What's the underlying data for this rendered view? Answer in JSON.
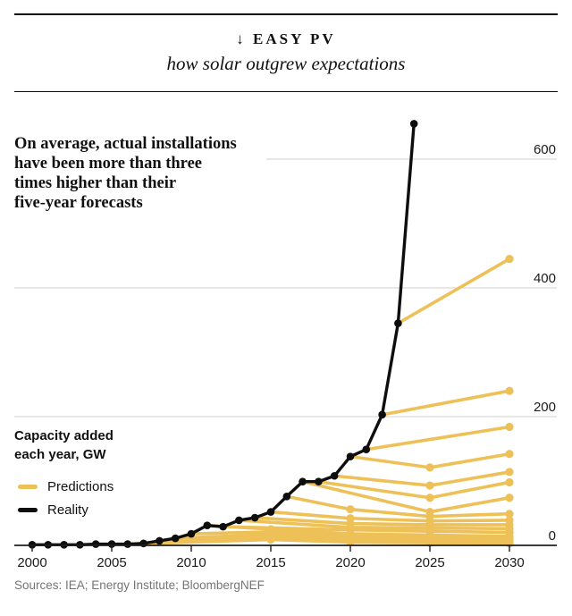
{
  "header": {
    "kicker": "↓ EASY PV",
    "subtitle": "how solar outgrew expectations"
  },
  "annotation": "On average, actual installations\nhave been more than three\ntimes higher than their\nfive-year forecasts",
  "axis_unit": "Capacity added\neach year, GW",
  "legend": {
    "predictions": {
      "label": "Predictions",
      "color": "#edc158"
    },
    "reality": {
      "label": "Reality",
      "color": "#0e0e0e"
    }
  },
  "footer": {
    "sources": "Sources: IEA; Energy Institute; BloombergNEF"
  },
  "chart_data": {
    "type": "line",
    "title": "EASY PV",
    "subtitle": "how solar outgrew expectations",
    "ylabel": "Capacity added each year, GW",
    "xlabel": "",
    "x_ticks": [
      2000,
      2005,
      2010,
      2015,
      2020,
      2025,
      2030
    ],
    "y_ticks": [
      0,
      200,
      400,
      600
    ],
    "xlim": [
      2000,
      2032
    ],
    "ylim": [
      0,
      680
    ],
    "grid": "horizontal",
    "legend_position": "left-middle",
    "colors": {
      "reality": "#0e0e0e",
      "predictions": "#edc158",
      "gridline": "#dadada",
      "axis": "#1f1f1f",
      "tick_text": "#1a1a1a"
    },
    "reality": {
      "name": "Reality",
      "points": [
        [
          2000,
          1
        ],
        [
          2001,
          1
        ],
        [
          2002,
          1
        ],
        [
          2003,
          1
        ],
        [
          2004,
          2
        ],
        [
          2005,
          2
        ],
        [
          2006,
          2
        ],
        [
          2007,
          3
        ],
        [
          2008,
          7
        ],
        [
          2009,
          11
        ],
        [
          2010,
          18
        ],
        [
          2011,
          31
        ],
        [
          2012,
          29
        ],
        [
          2013,
          39
        ],
        [
          2014,
          43
        ],
        [
          2015,
          52
        ],
        [
          2016,
          76
        ],
        [
          2017,
          99
        ],
        [
          2018,
          99
        ],
        [
          2019,
          108
        ],
        [
          2020,
          138
        ],
        [
          2021,
          149
        ],
        [
          2022,
          203
        ],
        [
          2023,
          345
        ],
        [
          2024,
          655
        ]
      ]
    },
    "predictions": {
      "name": "Predictions",
      "lines": [
        [
          [
            2023,
            345
          ],
          [
            2030,
            445
          ]
        ],
        [
          [
            2022,
            203
          ],
          [
            2030,
            240
          ]
        ],
        [
          [
            2021,
            149
          ],
          [
            2030,
            184
          ]
        ],
        [
          [
            2020,
            138
          ],
          [
            2025,
            121
          ],
          [
            2030,
            142
          ]
        ],
        [
          [
            2019,
            108
          ],
          [
            2025,
            93
          ],
          [
            2030,
            114
          ]
        ],
        [
          [
            2018,
            99
          ],
          [
            2025,
            74
          ],
          [
            2030,
            98
          ]
        ],
        [
          [
            2017,
            99
          ],
          [
            2025,
            52
          ],
          [
            2030,
            74
          ]
        ],
        [
          [
            2016,
            76
          ],
          [
            2020,
            56
          ],
          [
            2025,
            45
          ],
          [
            2030,
            49
          ]
        ],
        [
          [
            2015,
            52
          ],
          [
            2020,
            42
          ],
          [
            2025,
            38
          ],
          [
            2030,
            39
          ]
        ],
        [
          [
            2014,
            43
          ],
          [
            2020,
            34
          ],
          [
            2025,
            32
          ],
          [
            2030,
            32
          ]
        ],
        [
          [
            2013,
            39
          ],
          [
            2020,
            28
          ],
          [
            2025,
            27
          ],
          [
            2030,
            26
          ]
        ],
        [
          [
            2012,
            29
          ],
          [
            2020,
            24
          ],
          [
            2025,
            22
          ],
          [
            2030,
            20
          ]
        ],
        [
          [
            2011,
            31
          ],
          [
            2015,
            25
          ],
          [
            2020,
            18
          ],
          [
            2025,
            16
          ],
          [
            2030,
            14
          ]
        ],
        [
          [
            2010,
            18
          ],
          [
            2015,
            21
          ],
          [
            2020,
            14
          ],
          [
            2025,
            12
          ],
          [
            2030,
            11
          ]
        ],
        [
          [
            2009,
            11
          ],
          [
            2015,
            17
          ],
          [
            2020,
            10
          ],
          [
            2025,
            8
          ],
          [
            2030,
            8
          ]
        ],
        [
          [
            2008,
            7
          ],
          [
            2015,
            13
          ],
          [
            2020,
            7
          ],
          [
            2025,
            6
          ],
          [
            2030,
            5
          ]
        ],
        [
          [
            2006,
            2
          ],
          [
            2015,
            9
          ],
          [
            2020,
            5
          ],
          [
            2025,
            4
          ],
          [
            2030,
            3
          ]
        ]
      ]
    }
  }
}
